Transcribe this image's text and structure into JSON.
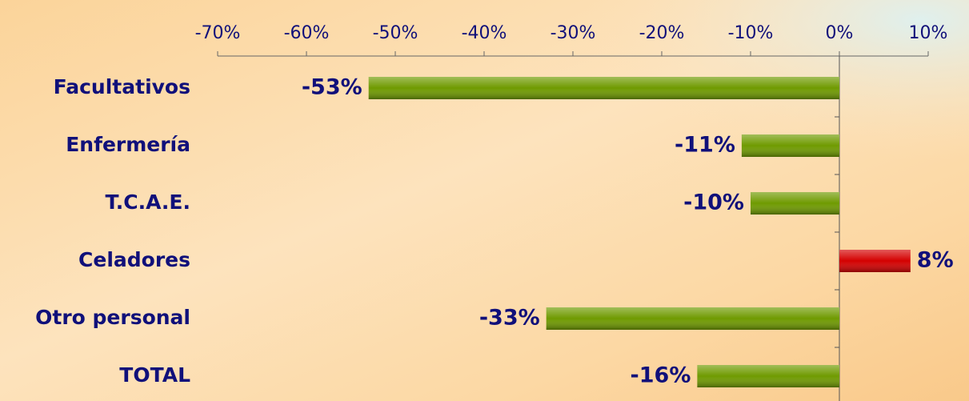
{
  "chart_data": {
    "type": "bar",
    "orientation": "horizontal",
    "categories": [
      "Facultativos",
      "Enfermería",
      "T.C.A.E.",
      "Celadores",
      "Otro personal",
      "TOTAL"
    ],
    "values": [
      -53,
      -11,
      -10,
      8,
      -33,
      -16
    ],
    "value_labels": [
      "-53%",
      "-11%",
      "-10%",
      "8%",
      "-33%",
      "-16%"
    ],
    "colors": [
      "#6f9a00",
      "#6f9a00",
      "#6f9a00",
      "#d40000",
      "#6f9a00",
      "#6f9a00"
    ],
    "xlim": [
      -70,
      10
    ],
    "xticks": [
      {
        "value": -70,
        "label": "-70%"
      },
      {
        "value": -60,
        "label": "-60%"
      },
      {
        "value": -50,
        "label": "-50%"
      },
      {
        "value": -40,
        "label": "-40%"
      },
      {
        "value": -30,
        "label": "-30%"
      },
      {
        "value": -20,
        "label": "-20%"
      },
      {
        "value": -10,
        "label": "-10%"
      },
      {
        "value": 0,
        "label": "0%"
      },
      {
        "value": 10,
        "label": "10%"
      }
    ],
    "grid": false
  }
}
